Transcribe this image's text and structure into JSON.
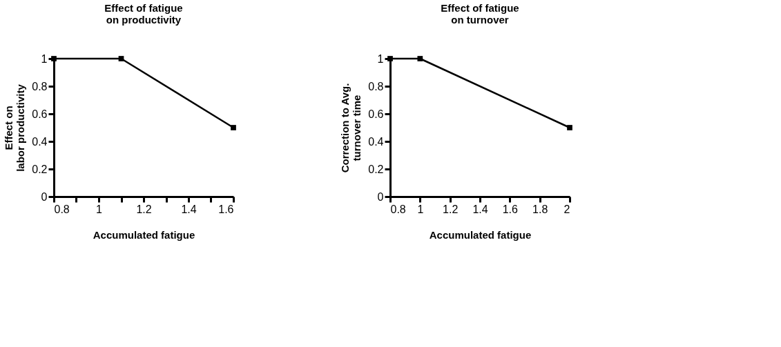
{
  "chart_data": [
    {
      "type": "line",
      "title": "Effect of fatigue on productivity",
      "xlabel": "Accumulated fatigue",
      "ylabel": "Effect on labor productivity",
      "x": [
        0.8,
        1.1,
        1.6
      ],
      "series": [
        {
          "color": "#000000",
          "values": [
            1,
            1,
            0.5
          ]
        }
      ],
      "xlim": [
        0.8,
        1.6
      ],
      "xticks": [
        0.8,
        {
          "value": 0.9,
          "label": null
        },
        1,
        {
          "value": 1.1,
          "label": null
        },
        1.2,
        {
          "value": 1.3,
          "label": null
        },
        1.4,
        {
          "value": 1.5,
          "label": null
        },
        1.6
      ],
      "ylim": [
        0,
        1
      ],
      "yticks": [
        0,
        0.2,
        0.4,
        0.6,
        0.8,
        1
      ],
      "grid": false,
      "marker": "square",
      "line_style": "solid"
    },
    {
      "type": "line",
      "title": "Effect of fatigue on turnover",
      "xlabel": "Accumulated fatigue",
      "ylabel": "Correction to Avg. turnover time",
      "x": [
        0.8,
        1,
        2
      ],
      "series": [
        {
          "color": "#000000",
          "values": [
            1,
            1,
            0.5
          ]
        }
      ],
      "xlim": [
        0.8,
        2
      ],
      "xticks": [
        0.8,
        1,
        1.2,
        1.4,
        1.6,
        1.8,
        2
      ],
      "ylim": [
        0,
        1
      ],
      "yticks": [
        0,
        0.2,
        0.4,
        0.6,
        0.8,
        1
      ],
      "grid": false,
      "marker": "square",
      "line_style": "solid"
    }
  ]
}
